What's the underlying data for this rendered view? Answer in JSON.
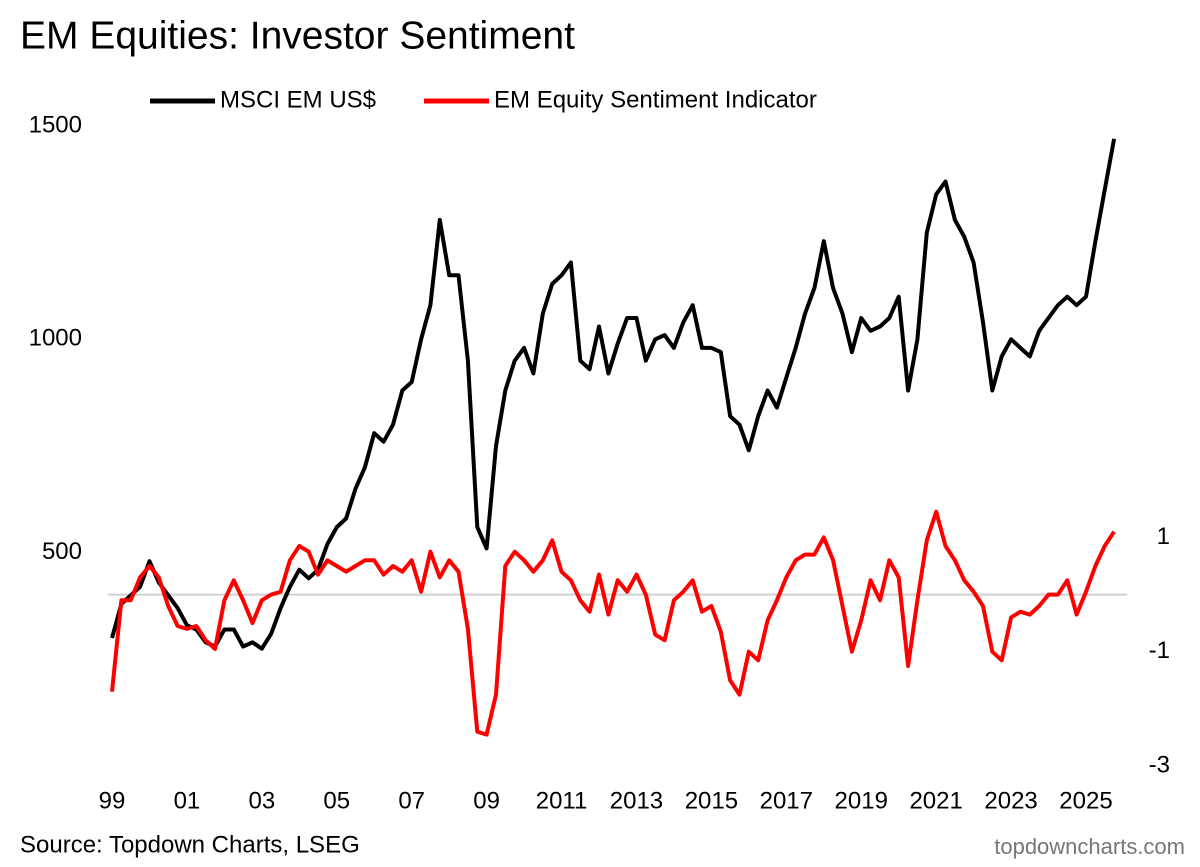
{
  "chart_data": {
    "type": "line",
    "title": "EM Equities: Investor Sentiment",
    "source": "Source: Topdown Charts, LSEG",
    "watermark": "topdowncharts.com",
    "x": [
      1999,
      1999.25,
      1999.5,
      1999.75,
      2000,
      2000.25,
      2000.5,
      2000.75,
      2001,
      2001.25,
      2001.5,
      2001.75,
      2002,
      2002.25,
      2002.5,
      2002.75,
      2003,
      2003.25,
      2003.5,
      2003.75,
      2004,
      2004.25,
      2004.5,
      2004.75,
      2005,
      2005.25,
      2005.5,
      2005.75,
      2006,
      2006.25,
      2006.5,
      2006.75,
      2007,
      2007.25,
      2007.5,
      2007.75,
      2008,
      2008.25,
      2008.5,
      2008.75,
      2009,
      2009.25,
      2009.5,
      2009.75,
      2010,
      2010.25,
      2010.5,
      2010.75,
      2011,
      2011.25,
      2011.5,
      2011.75,
      2012,
      2012.25,
      2012.5,
      2012.75,
      2013,
      2013.25,
      2013.5,
      2013.75,
      2014,
      2014.25,
      2014.5,
      2014.75,
      2015,
      2015.25,
      2015.5,
      2015.75,
      2016,
      2016.25,
      2016.5,
      2016.75,
      2017,
      2017.25,
      2017.5,
      2017.75,
      2018,
      2018.25,
      2018.5,
      2018.75,
      2019,
      2019.25,
      2019.5,
      2019.75,
      2020,
      2020.25,
      2020.5,
      2020.75,
      2021,
      2021.25,
      2021.5,
      2021.75,
      2022,
      2022.25,
      2022.5,
      2022.75,
      2023,
      2023.25,
      2023.5,
      2023.75,
      2024,
      2024.25,
      2024.5,
      2024.75,
      2025,
      2025.25,
      2025.5,
      2025.75
    ],
    "series": [
      {
        "name": "MSCI EM US$",
        "color": "#000000",
        "axis": "y",
        "values": [
          300,
          380,
          400,
          420,
          480,
          430,
          400,
          370,
          330,
          320,
          290,
          280,
          320,
          320,
          280,
          290,
          275,
          310,
          370,
          420,
          460,
          440,
          460,
          520,
          560,
          580,
          650,
          700,
          780,
          760,
          800,
          880,
          900,
          1000,
          1080,
          1280,
          1150,
          1150,
          950,
          560,
          510,
          750,
          880,
          950,
          980,
          920,
          1060,
          1130,
          1150,
          1180,
          950,
          930,
          1030,
          920,
          990,
          1050,
          1050,
          950,
          1000,
          1010,
          980,
          1040,
          1080,
          980,
          980,
          970,
          820,
          800,
          740,
          820,
          880,
          840,
          910,
          980,
          1060,
          1120,
          1230,
          1120,
          1060,
          970,
          1050,
          1020,
          1030,
          1050,
          1100,
          880,
          1000,
          1250,
          1340,
          1370,
          1280,
          1240,
          1180,
          1040,
          880,
          960,
          1000,
          980,
          960,
          1020,
          1050,
          1080,
          1100,
          1080,
          1100,
          1230,
          1350,
          1470
        ]
      },
      {
        "name": "EM Equity Sentiment Indicator",
        "color": "#ff0000",
        "axis": "y2",
        "values": [
          -1.7,
          -0.1,
          -0.1,
          0.3,
          0.5,
          0.3,
          -0.2,
          -0.55,
          -0.6,
          -0.55,
          -0.8,
          -0.95,
          -0.1,
          0.25,
          -0.1,
          -0.5,
          -0.1,
          0,
          0.05,
          0.6,
          0.85,
          0.75,
          0.35,
          0.6,
          0.5,
          0.4,
          0.5,
          0.6,
          0.6,
          0.35,
          0.5,
          0.4,
          0.6,
          0.05,
          0.75,
          0.3,
          0.6,
          0.4,
          -0.6,
          -2.4,
          -2.45,
          -1.75,
          0.5,
          0.75,
          0.6,
          0.4,
          0.6,
          0.95,
          0.4,
          0.25,
          -0.1,
          -0.3,
          0.35,
          -0.35,
          0.25,
          0.05,
          0.35,
          0,
          -0.7,
          -0.8,
          -0.1,
          0.05,
          0.25,
          -0.3,
          -0.2,
          -0.65,
          -1.5,
          -1.75,
          -1.0,
          -1.15,
          -0.45,
          -0.1,
          0.3,
          0.6,
          0.7,
          0.7,
          1.0,
          0.6,
          -0.2,
          -1.0,
          -0.45,
          0.25,
          -0.1,
          0.6,
          0.3,
          -1.25,
          -0.1,
          0.95,
          1.45,
          0.85,
          0.6,
          0.25,
          0.05,
          -0.2,
          -1.0,
          -1.15,
          -0.4,
          -0.3,
          -0.35,
          -0.2,
          0,
          0,
          0.25,
          -0.35,
          0.05,
          0.5,
          0.85,
          1.1
        ]
      }
    ],
    "xlim": [
      1998.9,
      2026.1
    ],
    "xticks": [
      {
        "value": 1999,
        "label": "99"
      },
      {
        "value": 2001,
        "label": "01"
      },
      {
        "value": 2003,
        "label": "03"
      },
      {
        "value": 2005,
        "label": "05"
      },
      {
        "value": 2007,
        "label": "07"
      },
      {
        "value": 2009,
        "label": "09"
      },
      2011,
      2013,
      2015,
      2017,
      2019,
      2021,
      2023,
      2025
    ],
    "ylim": [
      0,
      1500
    ],
    "yticks": [
      500,
      1000,
      1500
    ],
    "y2lim": [
      -3,
      8.2
    ],
    "y2ticks": [
      -3,
      -1,
      1
    ],
    "legend": "top"
  }
}
